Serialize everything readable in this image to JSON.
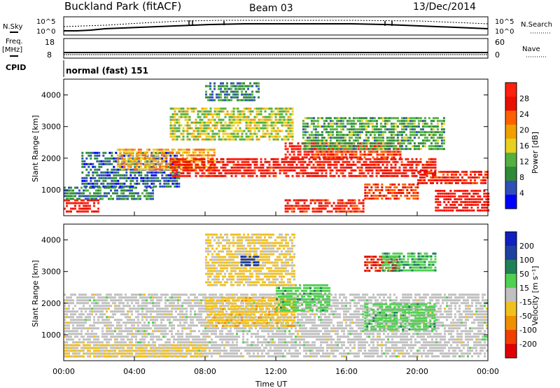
{
  "header": {
    "site": "Buckland Park (fitACF)",
    "beam": "Beam 03",
    "date": "13/Dec/2014"
  },
  "top_panels": {
    "nsky_label": "N.Sky",
    "nsearch_label": "N.Search",
    "noise_ticks": [
      "10^5",
      "10^0"
    ],
    "freq_label_line1": "Freq.",
    "freq_label_line2": "[MHz]",
    "freq_ticks": [
      "18",
      "8"
    ],
    "nave_label": "Nave",
    "nave_ticks": [
      "60",
      "0"
    ],
    "cpid_label": "CPID",
    "cpid_text": "normal (fast) 151"
  },
  "x_axis": {
    "title": "Time UT",
    "ticks": [
      "00:00",
      "04:00",
      "08:00",
      "12:00",
      "16:00",
      "20:00",
      "00:00"
    ]
  },
  "power_panel": {
    "ylabel": "Slant Range [km]",
    "yticks": [
      "1000",
      "2000",
      "3000",
      "4000"
    ],
    "colorbar_title": "Power [dB]",
    "colorbar_ticks": [
      "4",
      "8",
      "12",
      "16",
      "20",
      "24",
      "28"
    ],
    "colors": [
      "#0000ff",
      "#3050b8",
      "#2e8b3a",
      "#55b040",
      "#e8d020",
      "#f0a000",
      "#ff6000",
      "#e81000",
      "#ff2010"
    ]
  },
  "velocity_panel": {
    "ylabel": "Slant Range [km]",
    "yticks": [
      "1000",
      "2000",
      "3000",
      "4000"
    ],
    "colorbar_title": "Velocity [m s⁻¹]",
    "colorbar_ticks": [
      "200",
      "100",
      "50",
      "15",
      "-15",
      "-50",
      "-100",
      "-200"
    ],
    "colors": [
      "#1020c0",
      "#2040a0",
      "#20805a",
      "#50d050",
      "#c0c0c0",
      "#f0c020",
      "#f09000",
      "#f04000",
      "#e00000"
    ]
  },
  "chart_data": {
    "type": "heatmap",
    "xlabel": "Time UT",
    "ylabel": "Slant Range [km]",
    "xlim_hours": [
      0,
      24
    ],
    "ylim_km": [
      180,
      4500
    ],
    "power_scale_db": [
      0,
      30
    ],
    "velocity_scale_ms": [
      -250,
      250
    ],
    "power_regions": [
      {
        "t": [
          0.0,
          2.0
        ],
        "r": [
          300,
          700
        ],
        "db": 28
      },
      {
        "t": [
          0.0,
          5.0
        ],
        "r": [
          700,
          1100
        ],
        "db": 8
      },
      {
        "t": [
          1.0,
          6.5
        ],
        "r": [
          1100,
          2200
        ],
        "db": 6
      },
      {
        "t": [
          3.0,
          8.5
        ],
        "r": [
          1600,
          2300
        ],
        "db": 18
      },
      {
        "t": [
          6.0,
          21.0
        ],
        "r": [
          1400,
          2000
        ],
        "db": 27
      },
      {
        "t": [
          12.5,
          16.0
        ],
        "r": [
          2000,
          2500
        ],
        "db": 28
      },
      {
        "t": [
          14.0,
          19.0
        ],
        "r": [
          2000,
          2500
        ],
        "db": 24
      },
      {
        "t": [
          6.0,
          13.0
        ],
        "r": [
          2600,
          3600
        ],
        "db": 14
      },
      {
        "t": [
          8.0,
          11.0
        ],
        "r": [
          3800,
          4400
        ],
        "db": 8
      },
      {
        "t": [
          13.5,
          21.5
        ],
        "r": [
          2300,
          3300
        ],
        "db": 10
      },
      {
        "t": [
          20.0,
          24.0
        ],
        "r": [
          1200,
          1600
        ],
        "db": 26
      },
      {
        "t": [
          21.0,
          24.0
        ],
        "r": [
          300,
          1000
        ],
        "db": 28
      },
      {
        "t": [
          12.5,
          17.0
        ],
        "r": [
          300,
          700
        ],
        "db": 26
      },
      {
        "t": [
          17.0,
          20.0
        ],
        "r": [
          700,
          1200
        ],
        "db": 24
      }
    ],
    "velocity_regions": [
      {
        "t": [
          0.0,
          24.0
        ],
        "r": [
          300,
          2300
        ],
        "v": 0
      },
      {
        "t": [
          0.0,
          8.0
        ],
        "r": [
          300,
          700
        ],
        "v": -40
      },
      {
        "t": [
          8.0,
          13.0
        ],
        "r": [
          1300,
          2200
        ],
        "v": -60
      },
      {
        "t": [
          12.0,
          15.0
        ],
        "r": [
          1800,
          2600
        ],
        "v": 60
      },
      {
        "t": [
          17.0,
          21.0
        ],
        "r": [
          1200,
          2000
        ],
        "v": 60
      },
      {
        "t": [
          8.0,
          13.0
        ],
        "r": [
          2600,
          4200
        ],
        "v": -40
      },
      {
        "t": [
          17.0,
          19.0
        ],
        "r": [
          3000,
          3500
        ],
        "v": -200
      },
      {
        "t": [
          18.0,
          21.0
        ],
        "r": [
          3000,
          3600
        ],
        "v": 70
      },
      {
        "t": [
          10.0,
          11.0
        ],
        "r": [
          3200,
          3500
        ],
        "v": 180
      }
    ],
    "grid": false
  }
}
